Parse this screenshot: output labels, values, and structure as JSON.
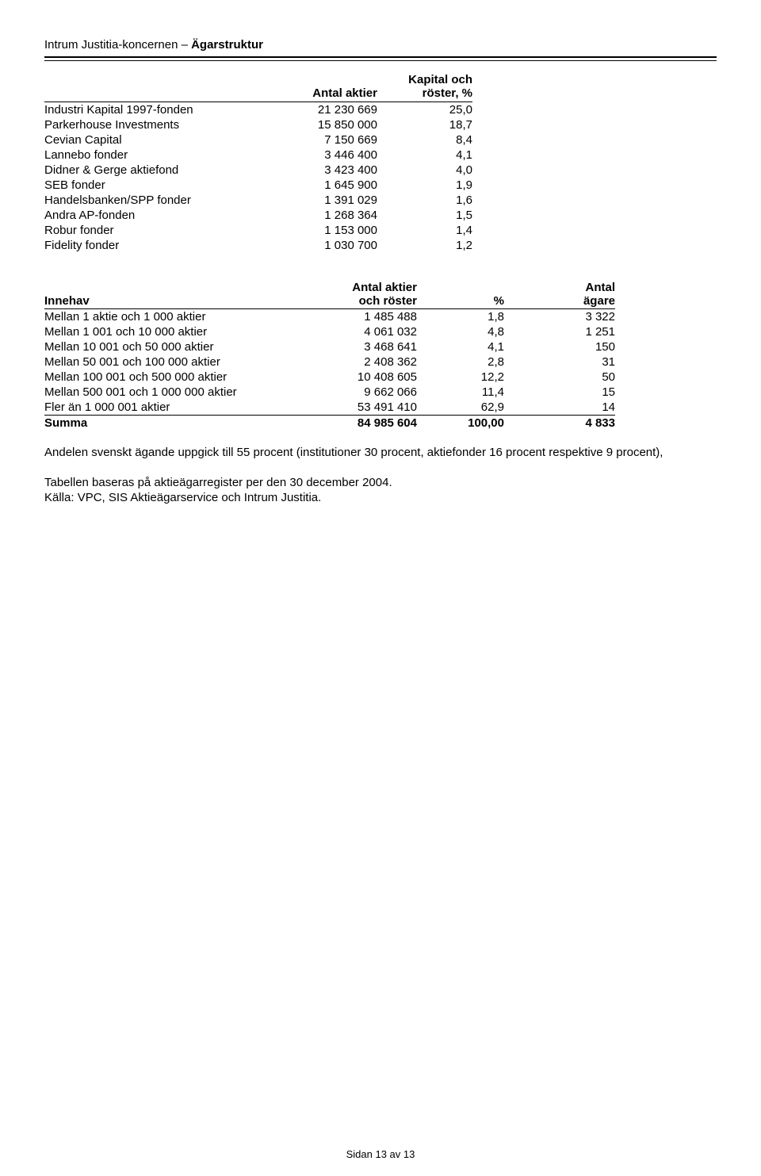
{
  "title": {
    "company": "Intrum Justitia-koncernen",
    "sep": " – ",
    "section": "Ägarstruktur"
  },
  "t1": {
    "head": {
      "shares": "Antal aktier",
      "cap_l1": "Kapital och",
      "cap_l2": "röster, %"
    },
    "rows": [
      {
        "name": "Industri Kapital 1997-fonden",
        "shares": "21 230 669",
        "pct": "25,0"
      },
      {
        "name": "Parkerhouse Investments",
        "shares": "15 850 000",
        "pct": "18,7"
      },
      {
        "name": "Cevian Capital",
        "shares": "7 150 669",
        "pct": "8,4"
      },
      {
        "name": "Lannebo fonder",
        "shares": "3 446 400",
        "pct": "4,1"
      },
      {
        "name": "Didner & Gerge aktiefond",
        "shares": "3 423 400",
        "pct": "4,0"
      },
      {
        "name": "SEB fonder",
        "shares": "1 645 900",
        "pct": "1,9"
      },
      {
        "name": "Handelsbanken/SPP fonder",
        "shares": "1 391 029",
        "pct": "1,6"
      },
      {
        "name": "Andra AP-fonden",
        "shares": "1 268 364",
        "pct": "1,5"
      },
      {
        "name": "Robur fonder",
        "shares": "1 153 000",
        "pct": "1,4"
      },
      {
        "name": "Fidelity fonder",
        "shares": "1 030 700",
        "pct": "1,2"
      }
    ]
  },
  "t2": {
    "head": {
      "holding": "Innehav",
      "shares_l1": "Antal aktier",
      "shares_l2": "och röster",
      "pct": "%",
      "owners_l1": "Antal",
      "owners_l2": "ägare"
    },
    "rows": [
      {
        "range": "Mellan 1 aktie och 1 000 aktier",
        "shares": "1 485 488",
        "pct": "1,8",
        "owners": "3 322"
      },
      {
        "range": "Mellan 1 001 och 10 000 aktier",
        "shares": "4 061 032",
        "pct": "4,8",
        "owners": "1 251"
      },
      {
        "range": "Mellan 10 001 och 50 000 aktier",
        "shares": "3 468 641",
        "pct": "4,1",
        "owners": "150"
      },
      {
        "range": "Mellan 50 001 och 100 000 aktier",
        "shares": "2 408 362",
        "pct": "2,8",
        "owners": "31"
      },
      {
        "range": "Mellan 100 001 och 500 000 aktier",
        "shares": "10 408 605",
        "pct": "12,2",
        "owners": "50"
      },
      {
        "range": "Mellan 500 001 och 1 000 000 aktier",
        "shares": "9 662 066",
        "pct": "11,4",
        "owners": "15"
      },
      {
        "range": "Fler än 1 000 001 aktier",
        "shares": "53 491 410",
        "pct": "62,9",
        "owners": "14"
      }
    ],
    "total": {
      "label": "Summa",
      "shares": "84 985 604",
      "pct": "100,00",
      "owners": "4 833"
    }
  },
  "notes": {
    "p1": "Andelen svenskt ägande uppgick till 55 procent (institutioner 30 procent, aktiefonder 16 procent respektive 9 procent),",
    "p2": "Tabellen baseras på aktieägarregister per den 30 december 2004.",
    "p3": "Källa: VPC, SIS Aktieägarservice och Intrum Justitia."
  },
  "footer": "Sidan 13 av 13"
}
